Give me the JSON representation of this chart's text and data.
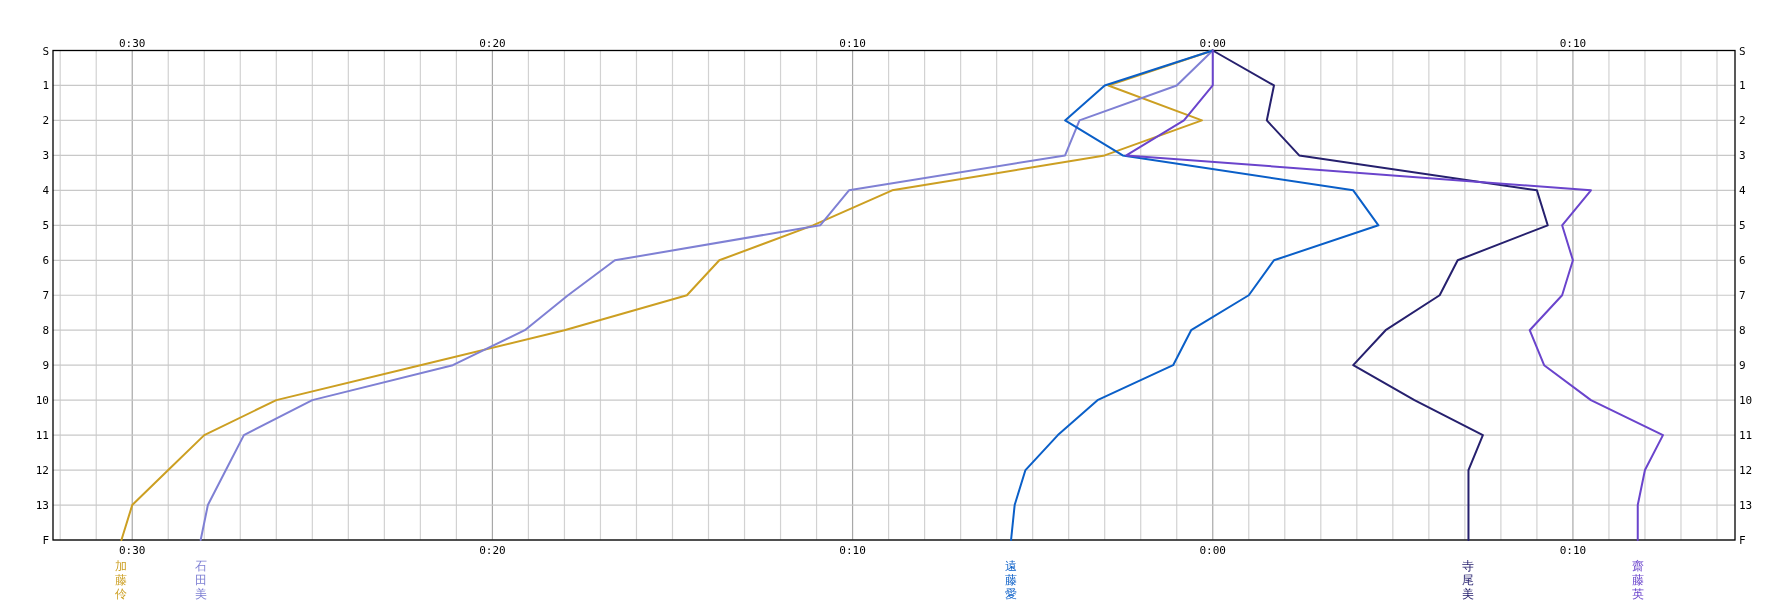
{
  "chart_data": {
    "type": "line",
    "orientation": "horizontal",
    "categories": [
      "S",
      "1",
      "2",
      "3",
      "4",
      "5",
      "6",
      "7",
      "8",
      "9",
      "10",
      "11",
      "12",
      "13",
      "F"
    ],
    "xlim": [
      -32.2,
      14.5
    ],
    "xticks": [
      {
        "value": -30,
        "label": "0:30"
      },
      {
        "value": -20,
        "label": "0:20"
      },
      {
        "value": -10,
        "label": "0:10"
      },
      {
        "value": 0,
        "label": "0:00"
      },
      {
        "value": 10,
        "label": "0:10"
      },
      {
        "value": -32,
        "label": null
      },
      {
        "value": -31,
        "label": null
      },
      {
        "value": -29,
        "label": null
      },
      {
        "value": -28,
        "label": null
      },
      {
        "value": -27,
        "label": null
      },
      {
        "value": -26,
        "label": null
      },
      {
        "value": -25,
        "label": null
      },
      {
        "value": -24,
        "label": null
      },
      {
        "value": -23,
        "label": null
      },
      {
        "value": -22,
        "label": null
      },
      {
        "value": -21,
        "label": null
      },
      {
        "value": -19,
        "label": null
      },
      {
        "value": -18,
        "label": null
      },
      {
        "value": -17,
        "label": null
      },
      {
        "value": -16,
        "label": null
      },
      {
        "value": -15,
        "label": null
      },
      {
        "value": -14,
        "label": null
      },
      {
        "value": -13,
        "label": null
      },
      {
        "value": -12,
        "label": null
      },
      {
        "value": -11,
        "label": null
      },
      {
        "value": -9,
        "label": null
      },
      {
        "value": -8,
        "label": null
      },
      {
        "value": -7,
        "label": null
      },
      {
        "value": -6,
        "label": null
      },
      {
        "value": -5,
        "label": null
      },
      {
        "value": -4,
        "label": null
      },
      {
        "value": -3,
        "label": null
      },
      {
        "value": -2,
        "label": null
      },
      {
        "value": -1,
        "label": null
      },
      {
        "value": 1,
        "label": null
      },
      {
        "value": 2,
        "label": null
      },
      {
        "value": 3,
        "label": null
      },
      {
        "value": 4,
        "label": null
      },
      {
        "value": 5,
        "label": null
      },
      {
        "value": 6,
        "label": null
      },
      {
        "value": 7,
        "label": null
      },
      {
        "value": 8,
        "label": null
      },
      {
        "value": 9,
        "label": null
      },
      {
        "value": 11,
        "label": null
      },
      {
        "value": 12,
        "label": null
      },
      {
        "value": 13,
        "label": null
      },
      {
        "value": 14,
        "label": null
      }
    ],
    "x2lim": [
      -32.2,
      14.5
    ],
    "x2ticks": [
      {
        "value": -30,
        "label": "0:30"
      },
      {
        "value": -20,
        "label": "0:20"
      },
      {
        "value": -10,
        "label": "0:10"
      },
      {
        "value": 0,
        "label": "0:00"
      },
      {
        "value": 10,
        "label": "0:10"
      }
    ],
    "grid": true,
    "legend": false,
    "marker": "none",
    "line_style": "solid",
    "series": [
      {
        "name": "加藤伶",
        "color": "#cc9f22",
        "values": [
          0,
          -2.9,
          -0.3,
          -3.0,
          -8.9,
          -11.1,
          -13.7,
          -14.6,
          -18.0,
          -22.0,
          -26.0,
          -28.0,
          -29.0,
          -30.0,
          -30.3
        ]
      },
      {
        "name": "石田美",
        "color": "#7f80d4",
        "values": [
          0,
          -1.0,
          -3.7,
          -4.1,
          -10.1,
          -10.9,
          -16.6,
          -17.9,
          -19.1,
          -21.1,
          -25.0,
          -26.9,
          -27.4,
          -27.9,
          -28.1
        ]
      },
      {
        "name": "遠藤愛",
        "color": "#0a5fc8",
        "values": [
          0,
          -3.0,
          -4.1,
          -2.5,
          3.9,
          4.6,
          1.7,
          1.0,
          -0.6,
          -1.1,
          -3.2,
          -4.3,
          -5.2,
          -5.5,
          -5.6
        ]
      },
      {
        "name": "寺尾美",
        "color": "#26206e",
        "values": [
          0,
          1.7,
          1.5,
          2.4,
          9.0,
          9.3,
          6.8,
          6.3,
          4.8,
          3.9,
          5.6,
          7.5,
          7.1,
          7.1,
          7.1
        ]
      },
      {
        "name": "齋藤英",
        "color": "#6a44cc",
        "values": [
          0,
          0,
          -0.8,
          -2.4,
          10.5,
          9.7,
          10.0,
          9.7,
          8.8,
          9.2,
          10.5,
          12.5,
          12.0,
          11.8,
          11.8
        ]
      }
    ]
  }
}
